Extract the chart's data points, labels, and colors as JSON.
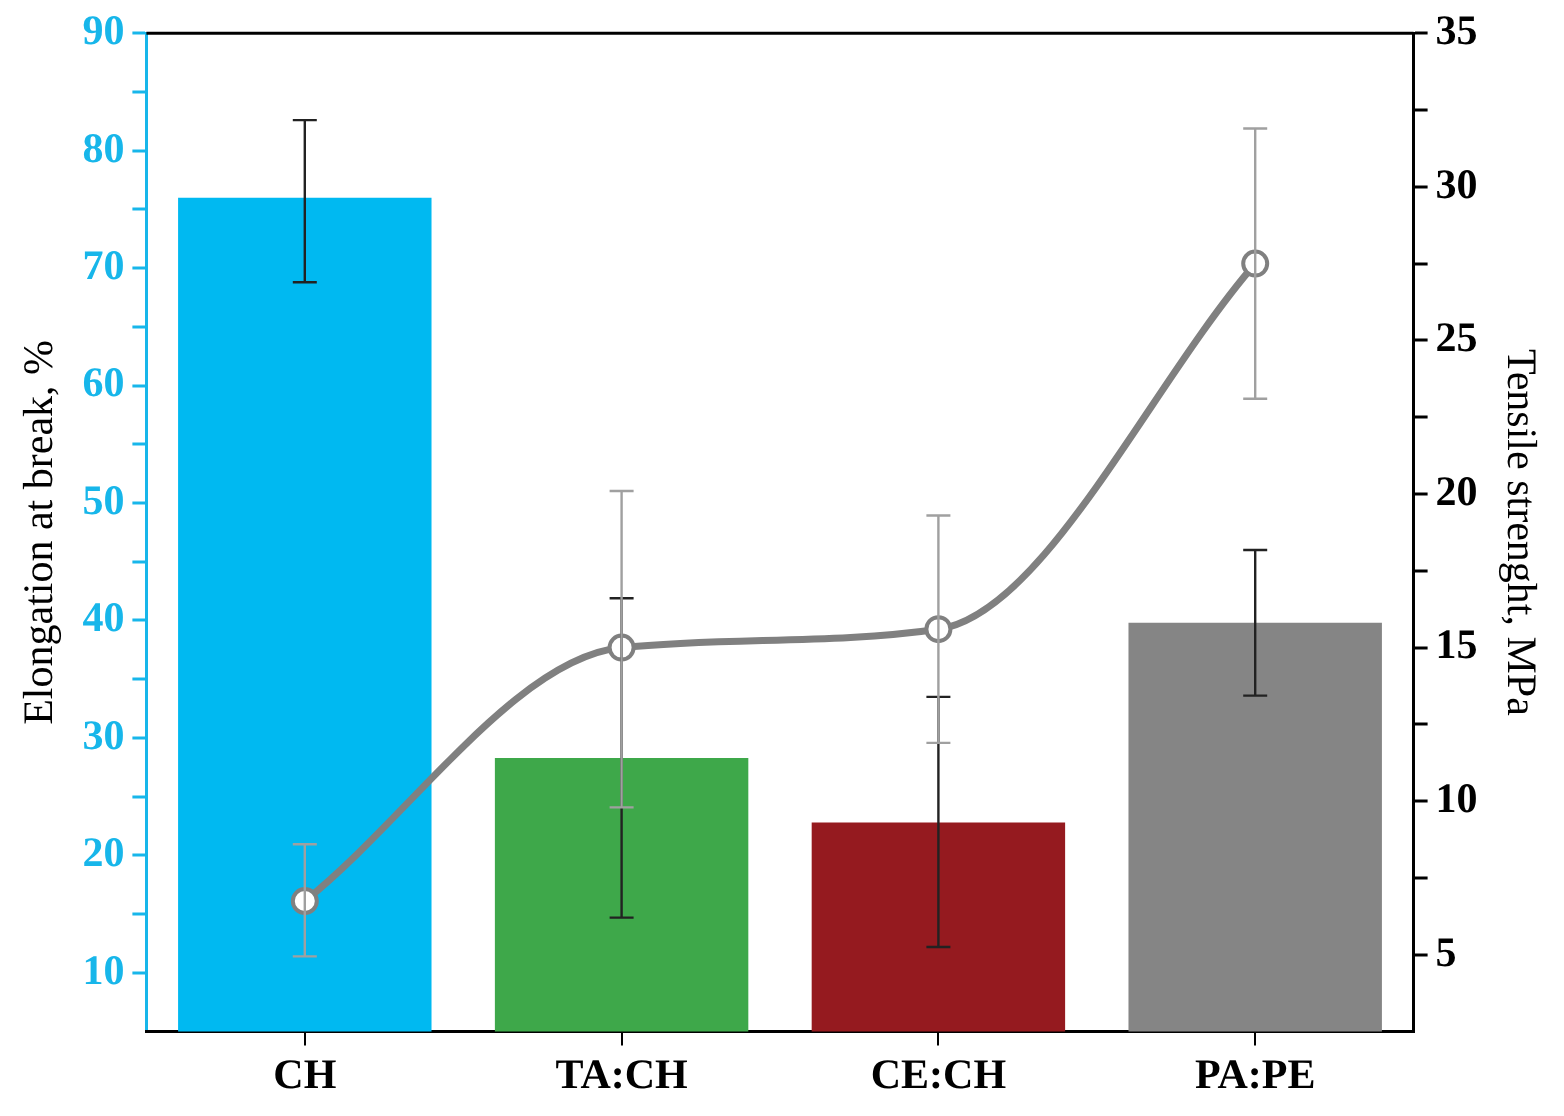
{
  "chart_data": {
    "type": "bar",
    "categories": [
      "CH",
      "TA:CH",
      "CE:CH",
      "PA:PE"
    ],
    "ylabel": "Elongation at break, %",
    "y2label": "Tensile strenght, MPa",
    "ylim": [
      5,
      90
    ],
    "yticks": [
      10,
      {
        "value": 15,
        "label": null
      },
      20,
      {
        "value": 25,
        "label": null
      },
      30,
      {
        "value": 35,
        "label": null
      },
      40,
      {
        "value": 45,
        "label": null
      },
      50,
      {
        "value": 55,
        "label": null
      },
      60,
      {
        "value": 65,
        "label": null
      },
      70,
      {
        "value": 75,
        "label": null
      },
      80,
      {
        "value": 85,
        "label": null
      },
      90
    ],
    "y2lim": [
      2.5,
      35
    ],
    "y2ticks": [
      5,
      {
        "value": 7.5,
        "label": null
      },
      10,
      {
        "value": 12.5,
        "label": null
      },
      15,
      {
        "value": 17.5,
        "label": null
      },
      20,
      {
        "value": 22.5,
        "label": null
      },
      25,
      {
        "value": 27.5,
        "label": null
      },
      30,
      {
        "value": 32.5,
        "label": null
      },
      35
    ],
    "series": [
      {
        "colors": [
          "#00b9f1",
          "#3ea84a",
          "#951a1f",
          "#858585"
        ],
        "values": [
          76,
          28.3,
          22.8,
          39.8
        ],
        "errors": [
          [
            68.8,
            82.6
          ],
          [
            14.7,
            41.9
          ],
          [
            12.2,
            33.5
          ],
          [
            33.6,
            46
          ]
        ]
      },
      {
        "type": "line",
        "axis": "y2",
        "color": "#808080",
        "values": [
          6.75,
          15,
          15.6,
          27.5
        ],
        "errors": [
          [
            4.95,
            8.6
          ],
          [
            9.8,
            20.1
          ],
          [
            11.9,
            19.3
          ],
          [
            23.1,
            31.9
          ]
        ]
      }
    ],
    "marker": "circle",
    "line_style": "solid",
    "grid": false,
    "legend": false
  }
}
